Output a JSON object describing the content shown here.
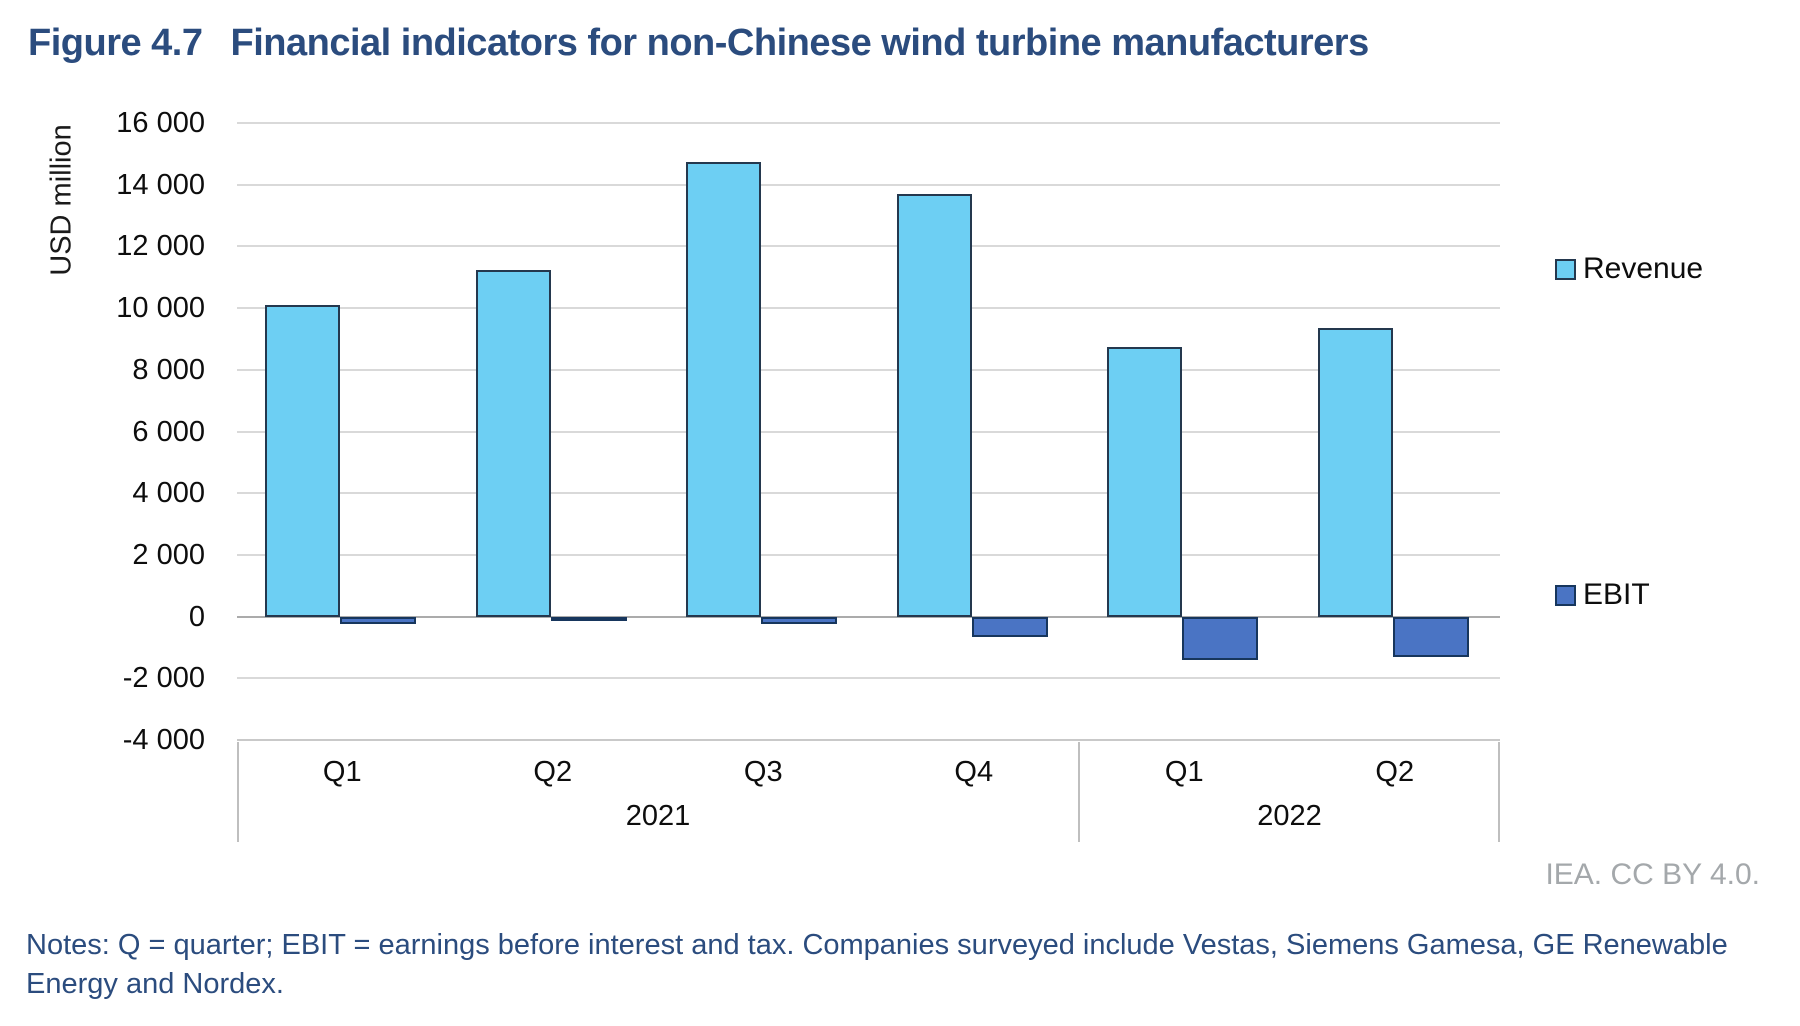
{
  "header": {
    "figure_label": "Figure 4.7",
    "figure_title": "Financial indicators for non-Chinese wind turbine manufacturers"
  },
  "chart_data": {
    "type": "bar",
    "title": "Figure 4.7 Financial indicators for non-Chinese wind turbine manufacturers",
    "ylabel": "USD million",
    "ylim": [
      -4000,
      16000
    ],
    "ytick_step": 2000,
    "ytick_labels": [
      "16 000",
      "14 000",
      "12 000",
      "10 000",
      "8 000",
      "6 000",
      "4 000",
      "2 000",
      "0",
      "-2 000",
      "-4 000"
    ],
    "categories": [
      "Q1",
      "Q2",
      "Q3",
      "Q4",
      "Q1",
      "Q2"
    ],
    "category_groups": [
      {
        "label": "2021",
        "span": 4
      },
      {
        "label": "2022",
        "span": 2
      }
    ],
    "grid": true,
    "legend_position": "right",
    "series": [
      {
        "name": "Revenue",
        "color": "#6DCFF3",
        "border_color": "#24384E",
        "values": [
          10100,
          11250,
          14750,
          13700,
          8750,
          9350
        ]
      },
      {
        "name": "EBIT",
        "color": "#4A74C4",
        "border_color": "#17365D",
        "values": [
          -250,
          -50,
          -250,
          -650,
          -1400,
          -1300
        ]
      }
    ]
  },
  "footer": {
    "attribution": "IEA. CC BY 4.0.",
    "notes": "Notes: Q = quarter; EBIT = earnings before interest and tax. Companies surveyed include Vestas, Siemens Gamesa, GE Renewable Energy and Nordex."
  },
  "colors": {
    "title_blue": "#2B4C7E",
    "revenue_fill": "#6DCFF3",
    "ebit_fill": "#4A74C4",
    "gridline": "#D9D9D9",
    "attribution_gray": "#A4A8AB"
  }
}
